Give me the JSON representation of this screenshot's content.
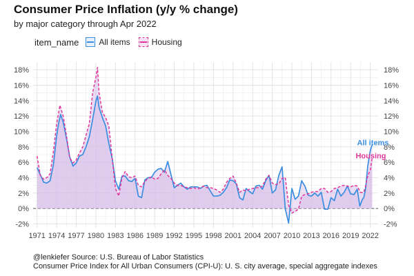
{
  "header": {
    "title": "Consumer Price Inflation (y/y % change)",
    "subtitle": "by major category through Apr 2022"
  },
  "legend": {
    "title": "item_name",
    "items": [
      "All items",
      "Housing"
    ]
  },
  "footer": {
    "line1": "@lenkiefer Source: U.S. Bureau of Labor Statistics",
    "line2": "Consumer Price Index for All Urban Consumers (CPI-U): U. S. city average, special aggregate indexes"
  },
  "colors": {
    "all_items": "#3b8de0",
    "housing": "#e0379a",
    "fill": "#d6bde9",
    "grid": "#ebebeb",
    "zero_line": "#555555"
  },
  "chart_data": {
    "type": "line",
    "title": "Consumer Price Inflation (y/y % change)",
    "subtitle": "by major category through Apr 2022",
    "xlabel": "",
    "ylabel": "",
    "xlim": [
      1970.4,
      2023.2
    ],
    "ylim": [
      -2.5,
      19
    ],
    "x_ticks": [
      1971,
      1974,
      1977,
      1980,
      1983,
      1986,
      1989,
      1992,
      1995,
      1998,
      2001,
      2004,
      2007,
      2010,
      2013,
      2016,
      2019,
      2022
    ],
    "x_tick_labels": [
      "1971",
      "1974",
      "1977",
      "1980",
      "1983",
      "1986",
      "1989",
      "1992",
      "1995",
      "1998",
      "2001",
      "2004",
      "2007",
      "2010",
      "2013",
      "2016",
      "2019",
      "2022"
    ],
    "y_ticks": [
      -2,
      0,
      2,
      4,
      6,
      8,
      10,
      12,
      14,
      16,
      18
    ],
    "y_tick_labels": [
      "-2%",
      "0%",
      "2%",
      "4%",
      "6%",
      "8%",
      "10%",
      "12%",
      "14%",
      "16%",
      "18%"
    ],
    "grid": true,
    "legend_position": "top-left",
    "series": [
      {
        "name": "All items",
        "label": "All items",
        "x": [
          1971,
          1971.5,
          1972,
          1972.5,
          1973,
          1973.5,
          1974,
          1974.3,
          1974.6,
          1975,
          1975.5,
          1976,
          1976.5,
          1977,
          1977.5,
          1978,
          1978.5,
          1979,
          1979.5,
          1980,
          1980.25,
          1980.5,
          1981,
          1981.5,
          1982,
          1982.5,
          1983,
          1983.5,
          1984,
          1984.5,
          1985,
          1985.5,
          1986,
          1986.5,
          1987,
          1987.5,
          1988,
          1988.5,
          1989,
          1989.5,
          1990,
          1990.5,
          1991,
          1991.5,
          1992,
          1992.5,
          1993,
          1993.5,
          1994,
          1994.5,
          1995,
          1995.5,
          1996,
          1996.5,
          1997,
          1997.5,
          1998,
          1998.5,
          1999,
          1999.5,
          2000,
          2000.5,
          2001,
          2001.5,
          2002,
          2002.5,
          2003,
          2003.5,
          2004,
          2004.5,
          2005,
          2005.5,
          2006,
          2006.5,
          2007,
          2007.5,
          2008,
          2008.5,
          2009,
          2009.5,
          2010,
          2010.5,
          2011,
          2011.5,
          2012,
          2012.5,
          2013,
          2013.5,
          2014,
          2014.5,
          2015,
          2015.5,
          2016,
          2016.5,
          2017,
          2017.5,
          2018,
          2018.5,
          2019,
          2019.5,
          2020,
          2020.4,
          2020.8,
          2021,
          2021.3,
          2021.6,
          2022,
          2022.3
        ],
        "values": [
          5.3,
          4.4,
          3.4,
          3.3,
          3.6,
          5.7,
          9.4,
          11.0,
          12.2,
          11.2,
          9.1,
          6.7,
          5.5,
          5.9,
          6.8,
          7.0,
          8.0,
          9.3,
          11.5,
          13.9,
          14.6,
          13.1,
          11.8,
          10.7,
          8.4,
          6.5,
          3.6,
          2.5,
          4.2,
          4.2,
          3.6,
          3.5,
          3.9,
          1.6,
          1.4,
          3.7,
          4.0,
          4.0,
          4.7,
          5.1,
          5.2,
          4.7,
          6.1,
          4.4,
          2.7,
          3.0,
          3.3,
          2.8,
          2.5,
          2.8,
          2.8,
          2.8,
          2.6,
          2.9,
          3.0,
          2.3,
          1.6,
          1.6,
          1.7,
          2.1,
          2.7,
          3.7,
          3.6,
          3.2,
          1.4,
          1.1,
          2.6,
          2.2,
          1.9,
          2.9,
          3.0,
          2.5,
          3.6,
          4.3,
          2.0,
          2.4,
          4.3,
          5.4,
          -0.1,
          -1.9,
          2.6,
          1.2,
          1.6,
          3.6,
          2.9,
          1.7,
          1.6,
          2.0,
          1.6,
          2.1,
          -0.1,
          -0.1,
          1.4,
          1.0,
          2.5,
          1.6,
          2.1,
          2.9,
          1.9,
          1.8,
          2.5,
          0.3,
          1.2,
          1.4,
          2.6,
          5.4,
          7.5,
          8.3
        ]
      },
      {
        "name": "Housing",
        "label": "Housing",
        "x": [
          1971,
          1971.5,
          1972,
          1972.5,
          1973,
          1973.5,
          1974,
          1974.5,
          1975,
          1975.5,
          1976,
          1976.5,
          1977,
          1977.5,
          1978,
          1978.5,
          1979,
          1979.5,
          1980,
          1980.25,
          1980.5,
          1981,
          1981.5,
          1982,
          1982.5,
          1983,
          1983.5,
          1984,
          1984.5,
          1985,
          1985.5,
          1986,
          1986.5,
          1987,
          1987.5,
          1988,
          1988.5,
          1989,
          1989.5,
          1990,
          1990.5,
          1991,
          1991.5,
          1992,
          1992.5,
          1993,
          1993.5,
          1994,
          1994.5,
          1995,
          1995.5,
          1996,
          1996.5,
          1997,
          1997.5,
          1998,
          1998.5,
          1999,
          1999.5,
          2000,
          2000.5,
          2001,
          2001.5,
          2002,
          2002.5,
          2003,
          2003.5,
          2004,
          2004.5,
          2005,
          2005.5,
          2006,
          2006.5,
          2007,
          2007.5,
          2008,
          2008.5,
          2009,
          2009.5,
          2010,
          2010.5,
          2011,
          2011.5,
          2012,
          2012.5,
          2013,
          2013.5,
          2014,
          2014.5,
          2015,
          2015.5,
          2016,
          2016.5,
          2017,
          2017.5,
          2018,
          2018.5,
          2019,
          2019.5,
          2020,
          2020.5,
          2021,
          2021.3,
          2021.6,
          2022,
          2022.3
        ],
        "values": [
          6.8,
          4.3,
          3.8,
          4.0,
          4.5,
          7.4,
          11.0,
          13.4,
          12.0,
          9.5,
          6.6,
          5.9,
          6.3,
          7.2,
          8.0,
          9.5,
          11.0,
          15.0,
          17.0,
          18.3,
          15.0,
          12.5,
          11.8,
          10.7,
          6.5,
          2.6,
          1.6,
          4.0,
          4.8,
          4.1,
          4.0,
          4.2,
          3.0,
          2.8,
          3.5,
          3.9,
          4.1,
          3.8,
          3.9,
          4.5,
          5.0,
          4.3,
          3.9,
          3.3,
          3.0,
          3.0,
          2.8,
          2.7,
          2.6,
          2.7,
          2.5,
          2.7,
          2.9,
          2.7,
          2.7,
          2.6,
          2.4,
          2.1,
          2.5,
          3.4,
          3.9,
          4.2,
          3.3,
          2.1,
          2.4,
          2.3,
          2.5,
          2.6,
          2.7,
          2.7,
          2.9,
          3.8,
          4.3,
          3.3,
          3.1,
          3.2,
          3.9,
          4.0,
          0.4,
          -0.6,
          -0.4,
          -0.1,
          1.6,
          1.8,
          1.9,
          2.1,
          2.2,
          2.2,
          2.6,
          2.6,
          2.1,
          2.2,
          2.6,
          2.7,
          2.9,
          3.0,
          2.9,
          2.8,
          3.0,
          2.9,
          2.1,
          2.1,
          3.0,
          4.2,
          5.0,
          6.6
        ]
      }
    ]
  }
}
